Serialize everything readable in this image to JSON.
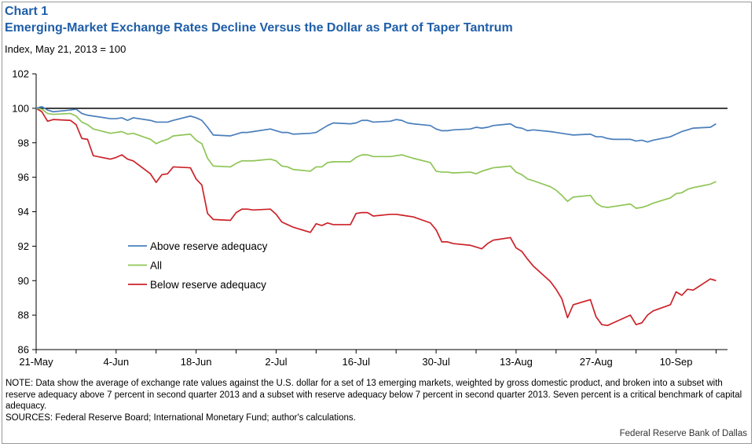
{
  "header": {
    "chart_label": "Chart 1",
    "title": "Emerging-Market Exchange Rates Decline Versus the Dollar  as Part of Taper Tantrum",
    "subtitle": "Index, May 21, 2013 = 100"
  },
  "footer": {
    "note": "NOTE: Data show the average of exchange rate values against the U.S. dollar for a set of 13 emerging markets, weighted by gross domestic product, and broken into a subset with reserve adequacy above 7 percent in second quarter 2013 and a subset with reserve adequacy below 7 percent in second quarter 2013. Seven percent is a critical benchmark of capital adequacy.",
    "sources": "SOURCES: Federal Reserve Board; International Monetary Fund; author's calculations.",
    "credit": "Federal Reserve  Bank of Dallas"
  },
  "chart_data": {
    "type": "line",
    "title": "Emerging-Market Exchange Rates Decline Versus the Dollar  as Part of Taper Tantrum",
    "ylabel": "Index, May 21, 2013 = 100",
    "ylim": [
      86,
      102
    ],
    "yticks": [
      86,
      88,
      90,
      92,
      94,
      96,
      98,
      100,
      102
    ],
    "x_tick_labels": [
      "21-May",
      "4-Jun",
      "18-Jun",
      "2-Jul",
      "16-Jul",
      "30-Jul",
      "13-Aug",
      "27-Aug",
      "10-Sep"
    ],
    "x_tick_dates": [
      "2013-05-21",
      "2013-06-04",
      "2013-06-18",
      "2013-07-02",
      "2013-07-16",
      "2013-07-30",
      "2013-08-13",
      "2013-08-27",
      "2013-09-10"
    ],
    "reference_line": 100,
    "legend_position": "lower-left",
    "grid": false,
    "series": [
      {
        "name": "Above reserve adequacy",
        "color": "#4a7ebb",
        "points": [
          [
            "2013-05-21",
            100.0
          ],
          [
            "2013-05-22",
            100.1
          ],
          [
            "2013-05-23",
            99.9
          ],
          [
            "2013-05-24",
            99.8
          ],
          [
            "2013-05-27",
            99.9
          ],
          [
            "2013-05-28",
            99.95
          ],
          [
            "2013-05-29",
            99.7
          ],
          [
            "2013-05-30",
            99.6
          ],
          [
            "2013-05-31",
            99.55
          ],
          [
            "2013-06-03",
            99.4
          ],
          [
            "2013-06-04",
            99.4
          ],
          [
            "2013-06-05",
            99.45
          ],
          [
            "2013-06-06",
            99.3
          ],
          [
            "2013-06-07",
            99.45
          ],
          [
            "2013-06-10",
            99.3
          ],
          [
            "2013-06-11",
            99.2
          ],
          [
            "2013-06-12",
            99.2
          ],
          [
            "2013-06-13",
            99.2
          ],
          [
            "2013-06-14",
            99.3
          ],
          [
            "2013-06-17",
            99.55
          ],
          [
            "2013-06-18",
            99.45
          ],
          [
            "2013-06-19",
            99.3
          ],
          [
            "2013-06-20",
            98.9
          ],
          [
            "2013-06-21",
            98.45
          ],
          [
            "2013-06-24",
            98.4
          ],
          [
            "2013-06-25",
            98.5
          ],
          [
            "2013-06-26",
            98.6
          ],
          [
            "2013-06-27",
            98.6
          ],
          [
            "2013-06-28",
            98.65
          ],
          [
            "2013-07-01",
            98.8
          ],
          [
            "2013-07-02",
            98.7
          ],
          [
            "2013-07-03",
            98.6
          ],
          [
            "2013-07-04",
            98.6
          ],
          [
            "2013-07-05",
            98.5
          ],
          [
            "2013-07-08",
            98.55
          ],
          [
            "2013-07-09",
            98.6
          ],
          [
            "2013-07-10",
            98.8
          ],
          [
            "2013-07-11",
            99.0
          ],
          [
            "2013-07-12",
            99.15
          ],
          [
            "2013-07-15",
            99.1
          ],
          [
            "2013-07-16",
            99.15
          ],
          [
            "2013-07-17",
            99.3
          ],
          [
            "2013-07-18",
            99.3
          ],
          [
            "2013-07-19",
            99.2
          ],
          [
            "2013-07-22",
            99.25
          ],
          [
            "2013-07-23",
            99.35
          ],
          [
            "2013-07-24",
            99.3
          ],
          [
            "2013-07-25",
            99.15
          ],
          [
            "2013-07-26",
            99.1
          ],
          [
            "2013-07-29",
            99.0
          ],
          [
            "2013-07-30",
            98.8
          ],
          [
            "2013-07-31",
            98.7
          ],
          [
            "2013-08-01",
            98.7
          ],
          [
            "2013-08-02",
            98.75
          ],
          [
            "2013-08-05",
            98.8
          ],
          [
            "2013-08-06",
            98.9
          ],
          [
            "2013-08-07",
            98.85
          ],
          [
            "2013-08-08",
            98.9
          ],
          [
            "2013-08-09",
            99.0
          ],
          [
            "2013-08-12",
            99.1
          ],
          [
            "2013-08-13",
            98.9
          ],
          [
            "2013-08-14",
            98.85
          ],
          [
            "2013-08-15",
            98.7
          ],
          [
            "2013-08-16",
            98.75
          ],
          [
            "2013-08-19",
            98.65
          ],
          [
            "2013-08-20",
            98.6
          ],
          [
            "2013-08-21",
            98.55
          ],
          [
            "2013-08-22",
            98.5
          ],
          [
            "2013-08-23",
            98.45
          ],
          [
            "2013-08-26",
            98.5
          ],
          [
            "2013-08-27",
            98.35
          ],
          [
            "2013-08-28",
            98.35
          ],
          [
            "2013-08-29",
            98.25
          ],
          [
            "2013-08-30",
            98.2
          ],
          [
            "2013-09-02",
            98.2
          ],
          [
            "2013-09-03",
            98.1
          ],
          [
            "2013-09-04",
            98.15
          ],
          [
            "2013-09-05",
            98.05
          ],
          [
            "2013-09-06",
            98.15
          ],
          [
            "2013-09-09",
            98.35
          ],
          [
            "2013-09-10",
            98.5
          ],
          [
            "2013-09-11",
            98.65
          ],
          [
            "2013-09-12",
            98.75
          ],
          [
            "2013-09-13",
            98.85
          ],
          [
            "2013-09-16",
            98.9
          ],
          [
            "2013-09-17",
            99.1
          ]
        ]
      },
      {
        "name": "All",
        "color": "#8fc557",
        "points": [
          [
            "2013-05-21",
            100.0
          ],
          [
            "2013-05-22",
            99.95
          ],
          [
            "2013-05-23",
            99.7
          ],
          [
            "2013-05-24",
            99.65
          ],
          [
            "2013-05-27",
            99.7
          ],
          [
            "2013-05-28",
            99.55
          ],
          [
            "2013-05-29",
            99.2
          ],
          [
            "2013-05-30",
            99.05
          ],
          [
            "2013-05-31",
            98.8
          ],
          [
            "2013-06-03",
            98.55
          ],
          [
            "2013-06-04",
            98.6
          ],
          [
            "2013-06-05",
            98.65
          ],
          [
            "2013-06-06",
            98.5
          ],
          [
            "2013-06-07",
            98.55
          ],
          [
            "2013-06-10",
            98.2
          ],
          [
            "2013-06-11",
            97.95
          ],
          [
            "2013-06-12",
            98.1
          ],
          [
            "2013-06-13",
            98.2
          ],
          [
            "2013-06-14",
            98.4
          ],
          [
            "2013-06-17",
            98.5
          ],
          [
            "2013-06-18",
            98.15
          ],
          [
            "2013-06-19",
            97.95
          ],
          [
            "2013-06-20",
            97.1
          ],
          [
            "2013-06-21",
            96.65
          ],
          [
            "2013-06-24",
            96.6
          ],
          [
            "2013-06-25",
            96.8
          ],
          [
            "2013-06-26",
            96.95
          ],
          [
            "2013-06-27",
            96.95
          ],
          [
            "2013-06-28",
            96.95
          ],
          [
            "2013-07-01",
            97.05
          ],
          [
            "2013-07-02",
            96.95
          ],
          [
            "2013-07-03",
            96.65
          ],
          [
            "2013-07-04",
            96.6
          ],
          [
            "2013-07-05",
            96.45
          ],
          [
            "2013-07-08",
            96.35
          ],
          [
            "2013-07-09",
            96.6
          ],
          [
            "2013-07-10",
            96.6
          ],
          [
            "2013-07-11",
            96.85
          ],
          [
            "2013-07-12",
            96.9
          ],
          [
            "2013-07-15",
            96.9
          ],
          [
            "2013-07-16",
            97.15
          ],
          [
            "2013-07-17",
            97.3
          ],
          [
            "2013-07-18",
            97.3
          ],
          [
            "2013-07-19",
            97.2
          ],
          [
            "2013-07-22",
            97.2
          ],
          [
            "2013-07-23",
            97.25
          ],
          [
            "2013-07-24",
            97.3
          ],
          [
            "2013-07-25",
            97.2
          ],
          [
            "2013-07-26",
            97.1
          ],
          [
            "2013-07-29",
            96.85
          ],
          [
            "2013-07-30",
            96.35
          ],
          [
            "2013-07-31",
            96.3
          ],
          [
            "2013-08-01",
            96.3
          ],
          [
            "2013-08-02",
            96.25
          ],
          [
            "2013-08-05",
            96.3
          ],
          [
            "2013-08-06",
            96.2
          ],
          [
            "2013-08-07",
            96.35
          ],
          [
            "2013-08-08",
            96.45
          ],
          [
            "2013-08-09",
            96.55
          ],
          [
            "2013-08-12",
            96.65
          ],
          [
            "2013-08-13",
            96.3
          ],
          [
            "2013-08-14",
            96.15
          ],
          [
            "2013-08-15",
            95.9
          ],
          [
            "2013-08-16",
            95.8
          ],
          [
            "2013-08-19",
            95.45
          ],
          [
            "2013-08-20",
            95.25
          ],
          [
            "2013-08-21",
            94.95
          ],
          [
            "2013-08-22",
            94.6
          ],
          [
            "2013-08-23",
            94.85
          ],
          [
            "2013-08-26",
            94.95
          ],
          [
            "2013-08-27",
            94.5
          ],
          [
            "2013-08-28",
            94.3
          ],
          [
            "2013-08-29",
            94.25
          ],
          [
            "2013-08-30",
            94.3
          ],
          [
            "2013-09-02",
            94.45
          ],
          [
            "2013-09-03",
            94.2
          ],
          [
            "2013-09-04",
            94.25
          ],
          [
            "2013-09-05",
            94.35
          ],
          [
            "2013-09-06",
            94.5
          ],
          [
            "2013-09-09",
            94.8
          ],
          [
            "2013-09-10",
            95.05
          ],
          [
            "2013-09-11",
            95.1
          ],
          [
            "2013-09-12",
            95.3
          ],
          [
            "2013-09-13",
            95.4
          ],
          [
            "2013-09-16",
            95.6
          ],
          [
            "2013-09-17",
            95.75
          ]
        ]
      },
      {
        "name": "Below reserve adequacy",
        "color": "#cc2229",
        "points": [
          [
            "2013-05-21",
            100.0
          ],
          [
            "2013-05-22",
            99.8
          ],
          [
            "2013-05-23",
            99.25
          ],
          [
            "2013-05-24",
            99.35
          ],
          [
            "2013-05-27",
            99.3
          ],
          [
            "2013-05-28",
            99.05
          ],
          [
            "2013-05-29",
            98.25
          ],
          [
            "2013-05-30",
            98.2
          ],
          [
            "2013-05-31",
            97.25
          ],
          [
            "2013-06-03",
            97.05
          ],
          [
            "2013-06-04",
            97.15
          ],
          [
            "2013-06-05",
            97.3
          ],
          [
            "2013-06-06",
            97.05
          ],
          [
            "2013-06-07",
            96.95
          ],
          [
            "2013-06-10",
            96.2
          ],
          [
            "2013-06-11",
            95.7
          ],
          [
            "2013-06-12",
            96.15
          ],
          [
            "2013-06-13",
            96.2
          ],
          [
            "2013-06-14",
            96.6
          ],
          [
            "2013-06-17",
            96.55
          ],
          [
            "2013-06-18",
            95.9
          ],
          [
            "2013-06-19",
            95.55
          ],
          [
            "2013-06-20",
            93.9
          ],
          [
            "2013-06-21",
            93.55
          ],
          [
            "2013-06-24",
            93.5
          ],
          [
            "2013-06-25",
            93.95
          ],
          [
            "2013-06-26",
            94.15
          ],
          [
            "2013-06-27",
            94.15
          ],
          [
            "2013-06-28",
            94.1
          ],
          [
            "2013-07-01",
            94.15
          ],
          [
            "2013-07-02",
            93.85
          ],
          [
            "2013-07-03",
            93.4
          ],
          [
            "2013-07-04",
            93.25
          ],
          [
            "2013-07-05",
            93.1
          ],
          [
            "2013-07-08",
            92.8
          ],
          [
            "2013-07-09",
            93.3
          ],
          [
            "2013-07-10",
            93.2
          ],
          [
            "2013-07-11",
            93.35
          ],
          [
            "2013-07-12",
            93.25
          ],
          [
            "2013-07-15",
            93.25
          ],
          [
            "2013-07-16",
            93.9
          ],
          [
            "2013-07-17",
            93.95
          ],
          [
            "2013-07-18",
            93.95
          ],
          [
            "2013-07-19",
            93.75
          ],
          [
            "2013-07-22",
            93.85
          ],
          [
            "2013-07-23",
            93.85
          ],
          [
            "2013-07-24",
            93.8
          ],
          [
            "2013-07-25",
            93.75
          ],
          [
            "2013-07-26",
            93.7
          ],
          [
            "2013-07-29",
            93.35
          ],
          [
            "2013-07-30",
            92.95
          ],
          [
            "2013-07-31",
            92.25
          ],
          [
            "2013-08-01",
            92.25
          ],
          [
            "2013-08-02",
            92.15
          ],
          [
            "2013-08-05",
            92.05
          ],
          [
            "2013-08-06",
            91.95
          ],
          [
            "2013-08-07",
            91.85
          ],
          [
            "2013-08-08",
            92.15
          ],
          [
            "2013-08-09",
            92.35
          ],
          [
            "2013-08-12",
            92.5
          ],
          [
            "2013-08-13",
            91.9
          ],
          [
            "2013-08-14",
            91.7
          ],
          [
            "2013-08-15",
            91.25
          ],
          [
            "2013-08-16",
            90.85
          ],
          [
            "2013-08-19",
            89.95
          ],
          [
            "2013-08-20",
            89.5
          ],
          [
            "2013-08-21",
            88.95
          ],
          [
            "2013-08-22",
            87.85
          ],
          [
            "2013-08-23",
            88.6
          ],
          [
            "2013-08-26",
            88.9
          ],
          [
            "2013-08-27",
            87.9
          ],
          [
            "2013-08-28",
            87.45
          ],
          [
            "2013-08-29",
            87.4
          ],
          [
            "2013-08-30",
            87.55
          ],
          [
            "2013-09-02",
            88.0
          ],
          [
            "2013-09-03",
            87.45
          ],
          [
            "2013-09-04",
            87.55
          ],
          [
            "2013-09-05",
            88.0
          ],
          [
            "2013-09-06",
            88.25
          ],
          [
            "2013-09-09",
            88.6
          ],
          [
            "2013-09-10",
            89.35
          ],
          [
            "2013-09-11",
            89.15
          ],
          [
            "2013-09-12",
            89.5
          ],
          [
            "2013-09-13",
            89.45
          ],
          [
            "2013-09-16",
            90.1
          ],
          [
            "2013-09-17",
            90.0
          ]
        ]
      }
    ]
  }
}
